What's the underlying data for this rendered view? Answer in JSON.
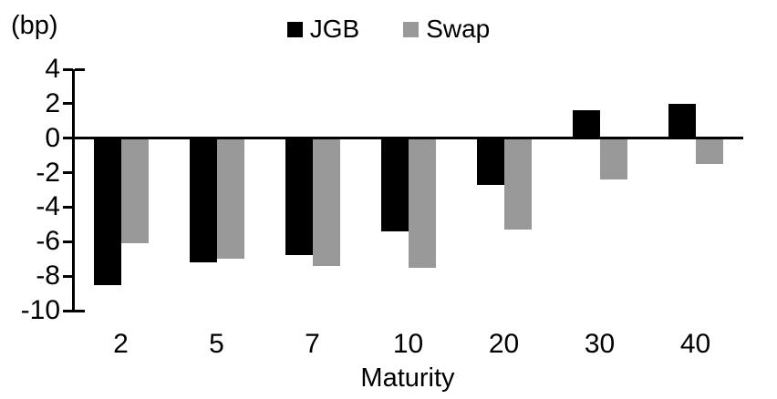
{
  "unit_label": "(bp)",
  "legend": [
    {
      "label": "JGB",
      "color": "#000000"
    },
    {
      "label": "Swap",
      "color": "#999999"
    }
  ],
  "chart_data": {
    "type": "bar",
    "categories": [
      "2",
      "5",
      "7",
      "10",
      "20",
      "30",
      "40"
    ],
    "series": [
      {
        "name": "JGB",
        "color": "#000000",
        "values": [
          -8.5,
          -7.2,
          -6.8,
          -5.4,
          -2.7,
          1.6,
          2.0
        ]
      },
      {
        "name": "Swap",
        "color": "#999999",
        "values": [
          -6.1,
          -7.0,
          -7.4,
          -7.5,
          -5.3,
          -2.4,
          -1.5
        ]
      }
    ],
    "title": "",
    "xlabel": "Maturity",
    "ylabel": "(bp)",
    "yticks": [
      4,
      2,
      0,
      -2,
      -4,
      -6,
      -8,
      -10
    ],
    "ylim": [
      -10,
      4
    ],
    "grid": false,
    "legend_position": "top-center",
    "baseline": 0
  }
}
